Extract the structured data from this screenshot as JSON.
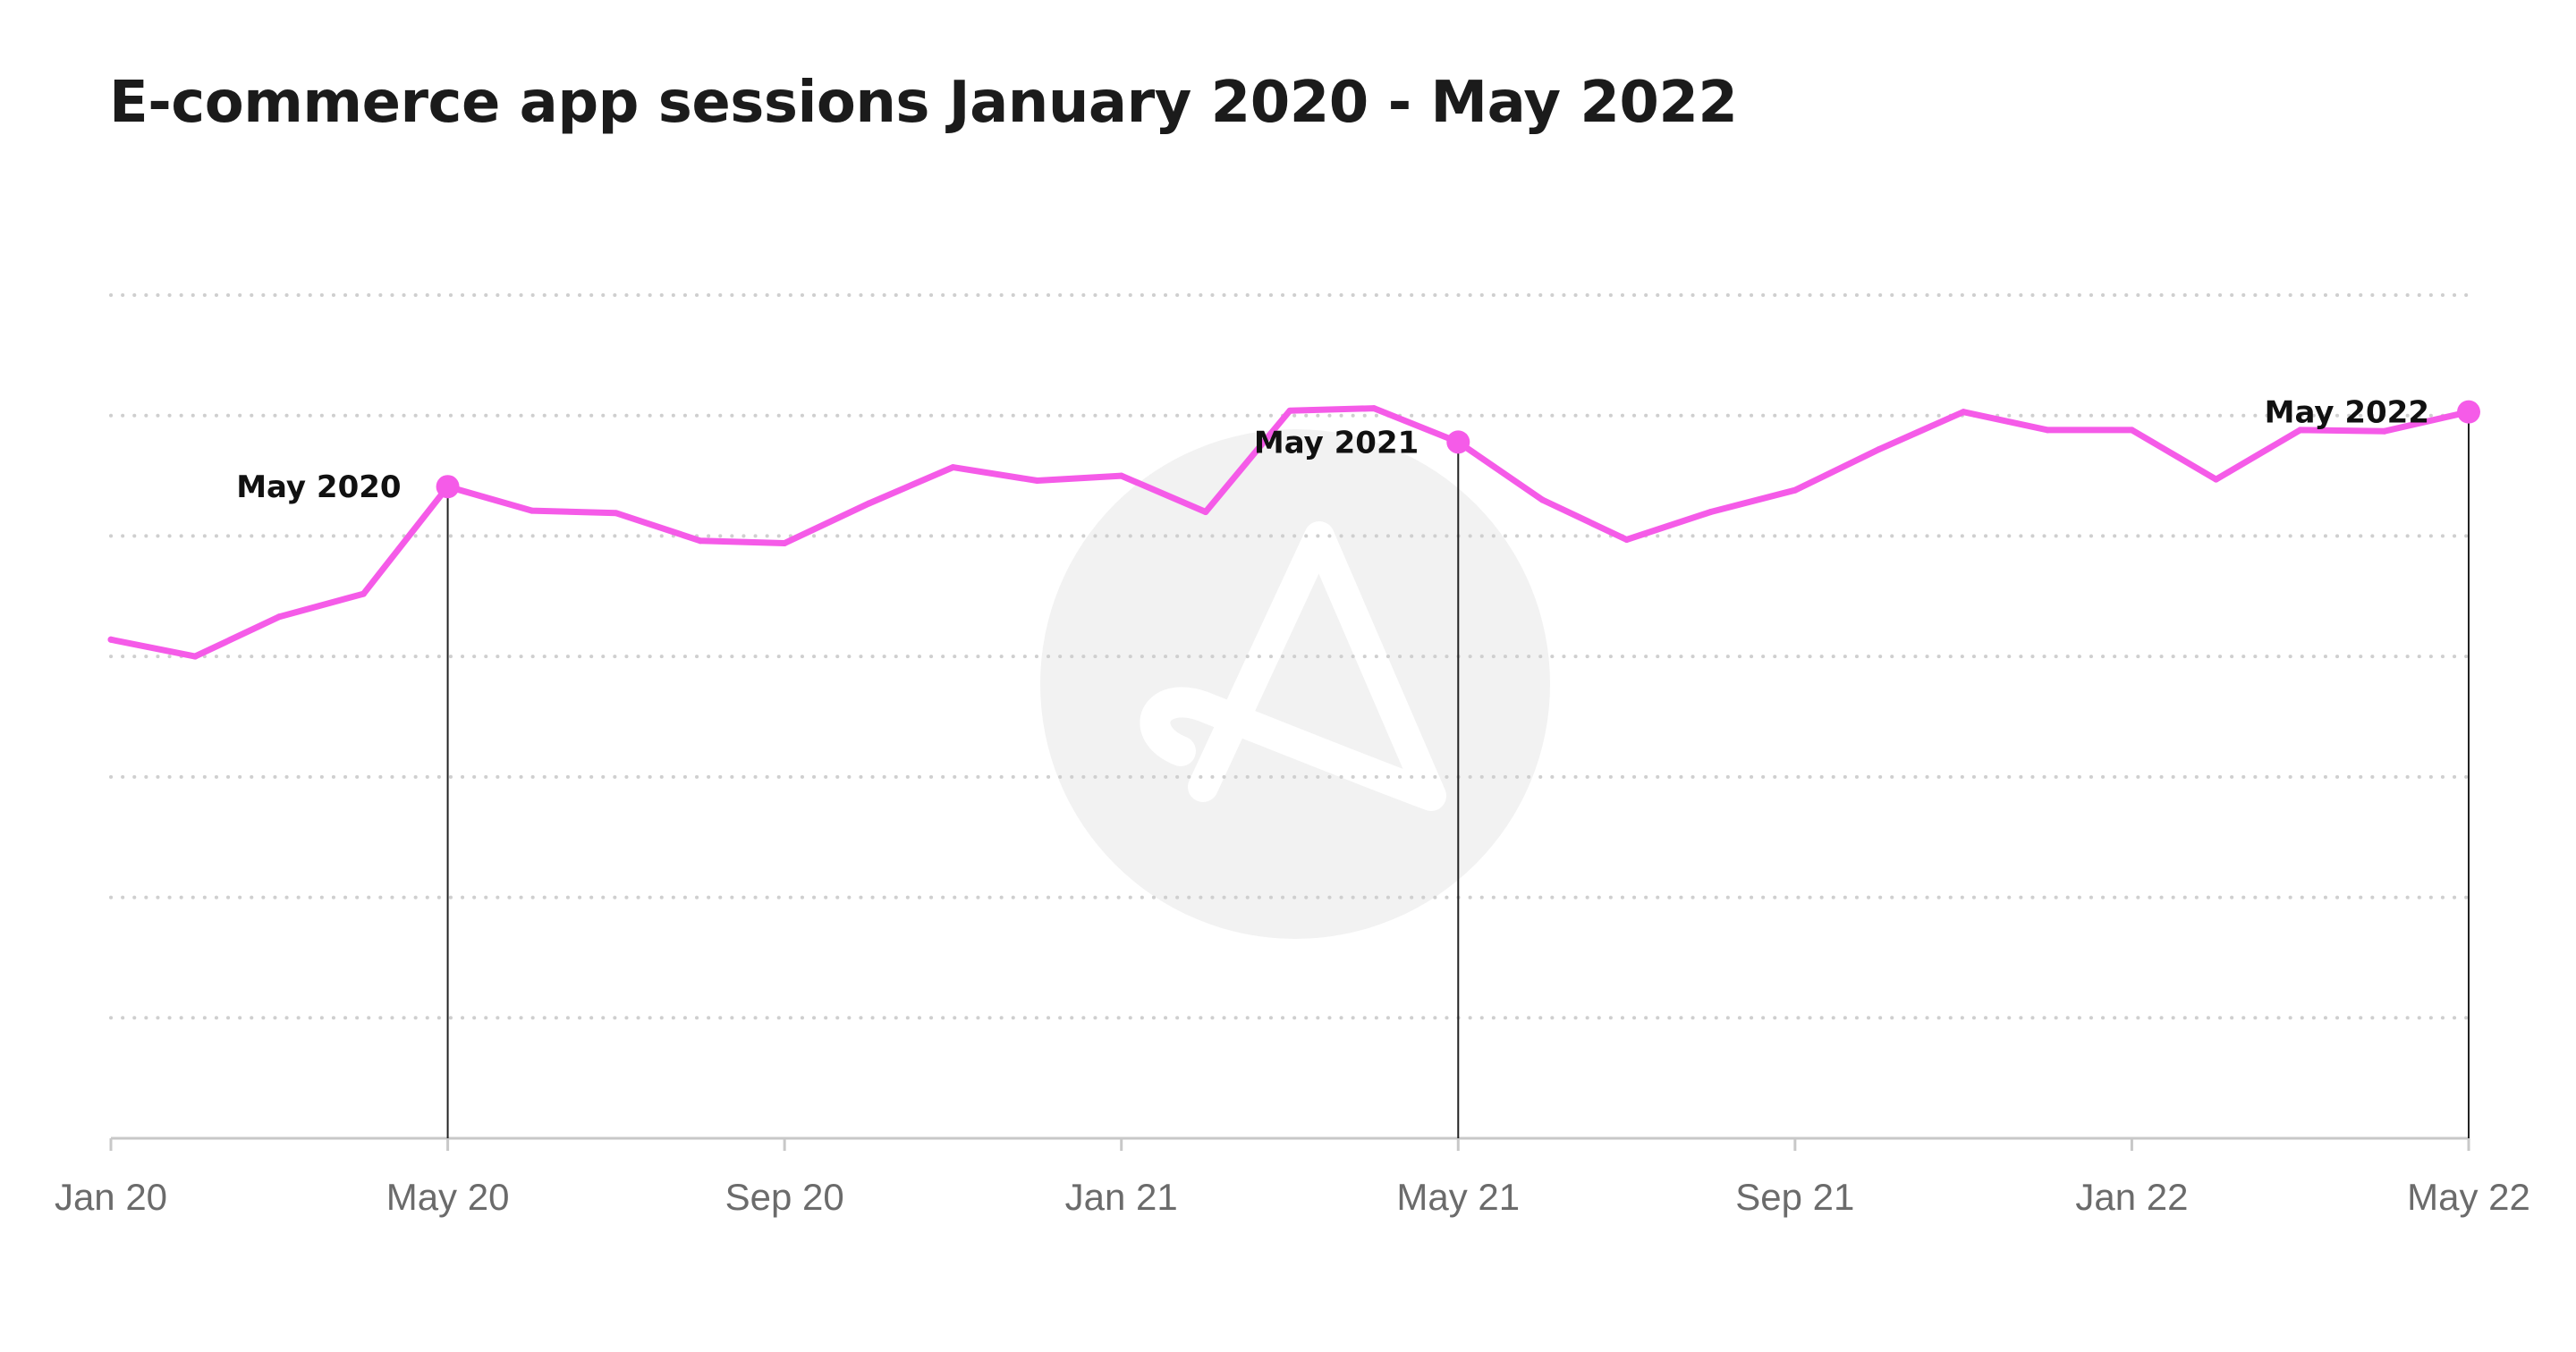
{
  "title": "E-commerce app sessions January 2020 - May 2022",
  "colors": {
    "line": "#f55be8",
    "marker": "#f55be8",
    "grid": "#cfcfcf",
    "axis": "#c8c8c8",
    "leader": "#222222",
    "watermark": "#f2f2f2"
  },
  "chart_data": {
    "type": "line",
    "title": "E-commerce app sessions January 2020 - May 2022",
    "xlabel": "",
    "ylabel": "",
    "x": [
      "Jan 20",
      "Feb 20",
      "Mar 20",
      "Apr 20",
      "May 20",
      "Jun 20",
      "Jul 20",
      "Aug 20",
      "Sep 20",
      "Oct 20",
      "Nov 20",
      "Dec 20",
      "Jan 21",
      "Feb 21",
      "Mar 21",
      "Apr 21",
      "May 21",
      "Jun 21",
      "Jul 21",
      "Aug 21",
      "Sep 21",
      "Oct 21",
      "Nov 21",
      "Dec 21",
      "Jan 22",
      "Feb 22",
      "Mar 22",
      "Apr 22",
      "May 22"
    ],
    "series": [
      {
        "values": [
          4.14,
          4.0,
          4.33,
          4.52,
          5.41,
          5.21,
          5.19,
          4.96,
          4.94,
          5.27,
          5.57,
          5.46,
          5.5,
          5.2,
          6.04,
          6.06,
          5.78,
          5.3,
          4.97,
          5.2,
          5.38,
          5.72,
          6.03,
          5.88,
          5.88,
          5.47,
          5.88,
          5.87,
          6.03
        ]
      }
    ],
    "ylim": [
      0,
      7
    ],
    "y_gridlines": [
      1,
      2,
      3,
      4,
      5,
      6,
      7
    ],
    "y_tick_labels_visible": false,
    "x_ticks": [
      "Jan 20",
      "May 20",
      "Sep 20",
      "Jan 21",
      "May 21",
      "Sep 21",
      "Jan 22",
      "May 22"
    ],
    "grid": "horizontal dotted",
    "annotations": [
      {
        "label": "May 2020",
        "x": "May 20"
      },
      {
        "label": "May 2021",
        "x": "May 21"
      },
      {
        "label": "May 2022",
        "x": "May 22"
      }
    ]
  }
}
